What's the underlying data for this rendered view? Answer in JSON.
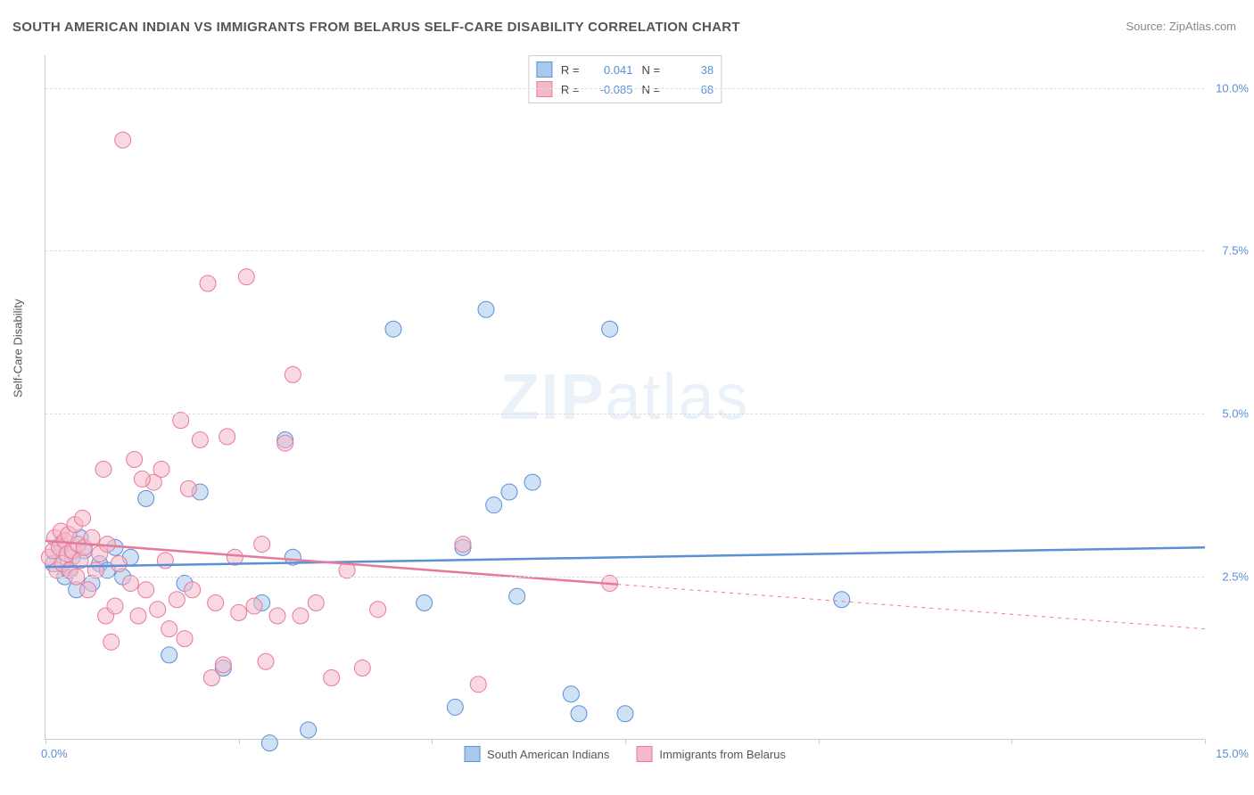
{
  "title": "SOUTH AMERICAN INDIAN VS IMMIGRANTS FROM BELARUS SELF-CARE DISABILITY CORRELATION CHART",
  "source": "Source: ZipAtlas.com",
  "y_axis_label": "Self-Care Disability",
  "watermark_zip": "ZIP",
  "watermark_atlas": "atlas",
  "chart": {
    "type": "scatter-with-trend",
    "xlim": [
      0,
      15
    ],
    "ylim": [
      0,
      10.5
    ],
    "y_ticks": [
      2.5,
      5.0,
      7.5,
      10.0
    ],
    "y_tick_labels": [
      "2.5%",
      "5.0%",
      "7.5%",
      "10.0%"
    ],
    "x_tick_positions": [
      0,
      2.5,
      5.0,
      7.5,
      10.0,
      12.5,
      15.0
    ],
    "x_origin_label": "0.0%",
    "x_max_label": "15.0%",
    "background_color": "#ffffff",
    "grid_color": "#dddddd",
    "axis_color": "#cccccc",
    "tick_label_color": "#5b8fd6",
    "marker_radius": 9,
    "marker_opacity": 0.55,
    "series": [
      {
        "name": "South American Indians",
        "color_fill": "#a8c8ec",
        "color_stroke": "#5b8fd6",
        "r_value": "0.041",
        "n_value": "38",
        "trend": {
          "x1": 0,
          "y1": 2.65,
          "x2": 15,
          "y2": 2.95,
          "solid_until_x": 15,
          "dash": false
        },
        "points": [
          [
            0.1,
            2.7
          ],
          [
            0.2,
            3.0
          ],
          [
            0.25,
            2.5
          ],
          [
            0.3,
            2.6
          ],
          [
            0.35,
            2.8
          ],
          [
            0.4,
            2.3
          ],
          [
            0.45,
            3.1
          ],
          [
            0.5,
            2.9
          ],
          [
            0.6,
            2.4
          ],
          [
            0.7,
            2.7
          ],
          [
            0.8,
            2.6
          ],
          [
            0.9,
            2.95
          ],
          [
            1.0,
            2.5
          ],
          [
            1.1,
            2.8
          ],
          [
            1.3,
            3.7
          ],
          [
            1.6,
            1.3
          ],
          [
            1.8,
            2.4
          ],
          [
            2.0,
            3.8
          ],
          [
            2.3,
            1.1
          ],
          [
            2.8,
            2.1
          ],
          [
            2.9,
            -0.05
          ],
          [
            3.1,
            4.6
          ],
          [
            3.2,
            2.8
          ],
          [
            3.4,
            0.15
          ],
          [
            4.5,
            6.3
          ],
          [
            4.9,
            2.1
          ],
          [
            5.3,
            0.5
          ],
          [
            5.4,
            2.95
          ],
          [
            5.8,
            3.6
          ],
          [
            6.0,
            3.8
          ],
          [
            5.7,
            6.6
          ],
          [
            6.1,
            2.2
          ],
          [
            6.8,
            0.7
          ],
          [
            6.9,
            0.4
          ],
          [
            7.3,
            6.3
          ],
          [
            7.5,
            0.4
          ],
          [
            10.3,
            2.15
          ],
          [
            6.3,
            3.95
          ]
        ]
      },
      {
        "name": "Immigrants from Belarus",
        "color_fill": "#f5b8c8",
        "color_stroke": "#e67a9a",
        "r_value": "-0.085",
        "n_value": "68",
        "trend": {
          "x1": 0,
          "y1": 3.05,
          "x2": 15,
          "y2": 1.7,
          "solid_until_x": 7.4,
          "dash": true
        },
        "points": [
          [
            0.05,
            2.8
          ],
          [
            0.1,
            2.9
          ],
          [
            0.12,
            3.1
          ],
          [
            0.15,
            2.6
          ],
          [
            0.18,
            2.95
          ],
          [
            0.2,
            3.2
          ],
          [
            0.22,
            2.7
          ],
          [
            0.25,
            3.05
          ],
          [
            0.28,
            2.85
          ],
          [
            0.3,
            3.15
          ],
          [
            0.32,
            2.6
          ],
          [
            0.35,
            2.9
          ],
          [
            0.38,
            3.3
          ],
          [
            0.4,
            2.5
          ],
          [
            0.42,
            3.0
          ],
          [
            0.45,
            2.75
          ],
          [
            0.48,
            3.4
          ],
          [
            0.5,
            2.95
          ],
          [
            0.55,
            2.3
          ],
          [
            0.6,
            3.1
          ],
          [
            0.65,
            2.6
          ],
          [
            0.7,
            2.85
          ],
          [
            0.75,
            4.15
          ],
          [
            0.78,
            1.9
          ],
          [
            0.8,
            3.0
          ],
          [
            0.85,
            1.5
          ],
          [
            0.9,
            2.05
          ],
          [
            0.95,
            2.7
          ],
          [
            1.0,
            9.2
          ],
          [
            1.1,
            2.4
          ],
          [
            1.15,
            4.3
          ],
          [
            1.2,
            1.9
          ],
          [
            1.3,
            2.3
          ],
          [
            1.4,
            3.95
          ],
          [
            1.45,
            2.0
          ],
          [
            1.5,
            4.15
          ],
          [
            1.55,
            2.75
          ],
          [
            1.6,
            1.7
          ],
          [
            1.7,
            2.15
          ],
          [
            1.75,
            4.9
          ],
          [
            1.8,
            1.55
          ],
          [
            1.85,
            3.85
          ],
          [
            1.9,
            2.3
          ],
          [
            2.0,
            4.6
          ],
          [
            2.1,
            7.0
          ],
          [
            2.15,
            0.95
          ],
          [
            2.2,
            2.1
          ],
          [
            2.3,
            1.15
          ],
          [
            2.35,
            4.65
          ],
          [
            2.5,
            1.95
          ],
          [
            2.6,
            7.1
          ],
          [
            2.7,
            2.05
          ],
          [
            2.8,
            3.0
          ],
          [
            2.85,
            1.2
          ],
          [
            3.0,
            1.9
          ],
          [
            3.1,
            4.55
          ],
          [
            3.2,
            5.6
          ],
          [
            3.3,
            1.9
          ],
          [
            3.5,
            2.1
          ],
          [
            3.7,
            0.95
          ],
          [
            3.9,
            2.6
          ],
          [
            4.1,
            1.1
          ],
          [
            4.3,
            2.0
          ],
          [
            5.4,
            3.0
          ],
          [
            5.6,
            0.85
          ],
          [
            7.3,
            2.4
          ],
          [
            1.25,
            4.0
          ],
          [
            2.45,
            2.8
          ]
        ]
      }
    ]
  },
  "stats_labels": {
    "r": "R =",
    "n": "N ="
  },
  "legend_series1": "South American Indians",
  "legend_series2": "Immigrants from Belarus"
}
